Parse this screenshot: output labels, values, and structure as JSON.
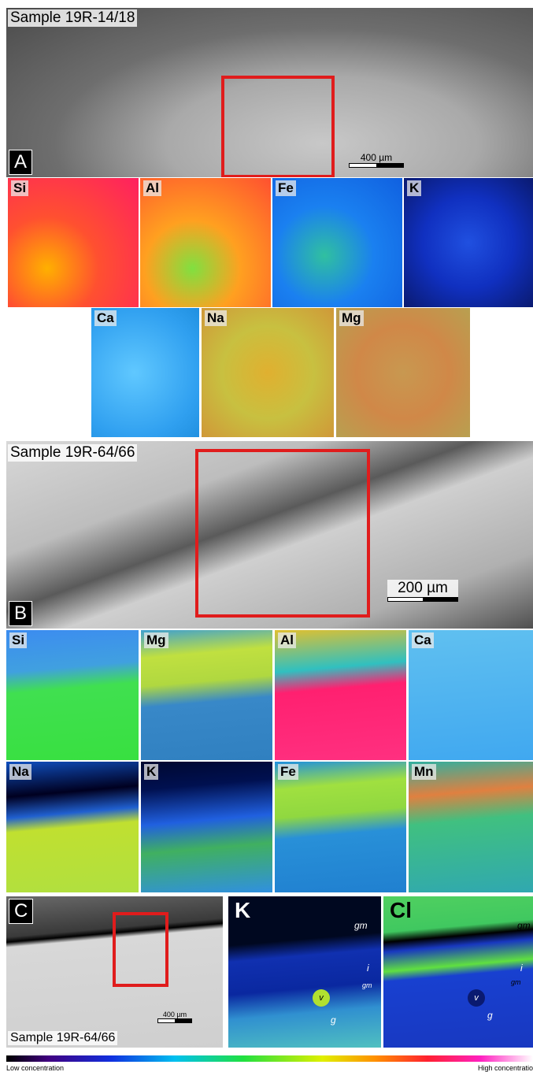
{
  "panel_a": {
    "sample": "Sample 19R-14/18",
    "letter": "A",
    "scale": "400 µm",
    "maps": [
      "Si",
      "Al",
      "Fe",
      "K",
      "Ca",
      "Na",
      "Mg"
    ]
  },
  "panel_b": {
    "sample": "Sample 19R-64/66",
    "letter": "B",
    "scale": "200 µm",
    "maps": [
      "Si",
      "Mg",
      "Al",
      "Ca",
      "Na",
      "K",
      "Fe",
      "Mn"
    ]
  },
  "panel_c": {
    "sample": "Sample 19R-64/66",
    "letter": "C",
    "scale": "400 µm",
    "maps": [
      {
        "element": "K",
        "labels": [
          "gm",
          "i",
          "gm",
          "v",
          "g"
        ]
      },
      {
        "element": "Cl",
        "labels": [
          "gm",
          "i",
          "gm",
          "v",
          "g"
        ]
      }
    ]
  },
  "colorbar": {
    "low": "Low concentration",
    "high": "High concentratio"
  }
}
